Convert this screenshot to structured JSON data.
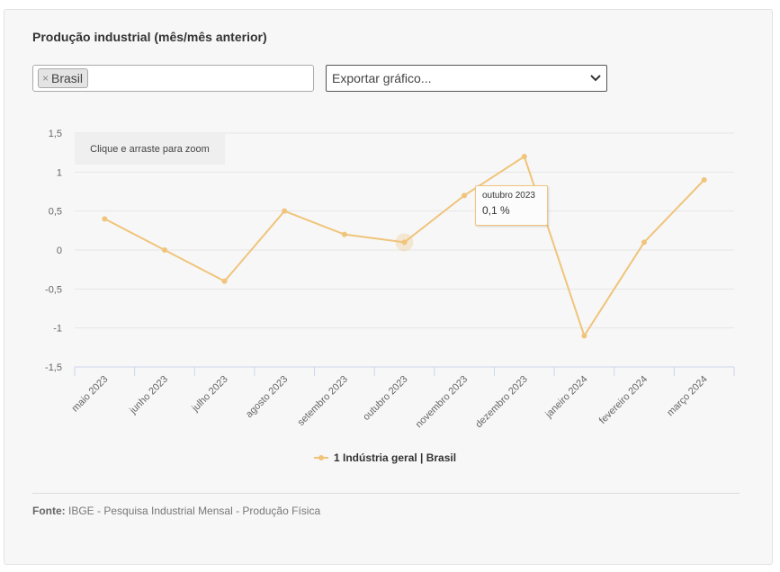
{
  "header": {
    "title": "Produção industrial (mês/mês anterior)"
  },
  "filter": {
    "chip_label": "Brasil",
    "chip_remove": "×"
  },
  "export": {
    "label": "Exportar gráfico...",
    "icon": "chevron-down-icon"
  },
  "zoom_hint": "Clique e arraste para zoom",
  "tooltip": {
    "date": "outubro 2023",
    "value": "0,1 %"
  },
  "source": {
    "label": "Fonte:",
    "text": "IBGE - Pesquisa Industrial Mensal - Produção Física"
  },
  "colors": {
    "series": "#f0c47b",
    "grid": "#e6e6e6",
    "axis": "#ccd6eb"
  },
  "chart_data": {
    "type": "line",
    "title": "Produção industrial (mês/mês anterior)",
    "xlabel": "",
    "ylabel": "",
    "ylim": [
      -1.5,
      1.5
    ],
    "yticks": [
      "1,5",
      "1",
      "0,5",
      "0",
      "-0,5",
      "-1",
      "-1,5"
    ],
    "grid": true,
    "legend": "bottom-center",
    "categories": [
      "maio 2023",
      "junho 2023",
      "julho 2023",
      "agosto 2023",
      "setembro 2023",
      "outubro 2023",
      "novembro 2023",
      "dezembro 2023",
      "janeiro 2024",
      "fevereiro 2024",
      "março 2024"
    ],
    "series": [
      {
        "name": "1 Indústria geral | Brasil",
        "values": [
          0.4,
          0.0,
          -0.4,
          0.5,
          0.2,
          0.1,
          0.7,
          1.2,
          -1.1,
          0.1,
          0.9
        ]
      }
    ]
  }
}
